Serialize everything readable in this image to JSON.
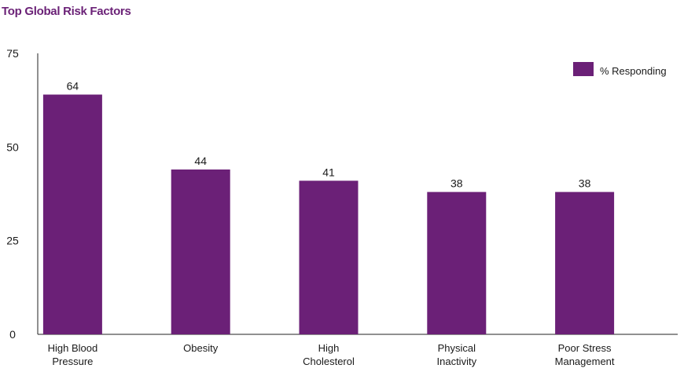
{
  "colors": {
    "title": "#6b2277",
    "bar": "#6b2077",
    "axis": "#222222"
  },
  "chart_data": {
    "type": "bar",
    "title": "Top Global Risk Factors",
    "xlabel": "",
    "ylabel": "",
    "ylim": [
      0,
      75
    ],
    "yticks": [
      0,
      25,
      50,
      75
    ],
    "grid": false,
    "legend_position": "top-right",
    "categories": [
      [
        "High Blood",
        "Pressure"
      ],
      [
        "Obesity"
      ],
      [
        "High",
        "Cholesterol"
      ],
      [
        "Physical",
        "Inactivity"
      ],
      [
        "Poor Stress",
        "Management"
      ]
    ],
    "series": [
      {
        "name": "% Responding",
        "values": [
          64,
          44,
          41,
          38,
          38
        ]
      }
    ]
  }
}
